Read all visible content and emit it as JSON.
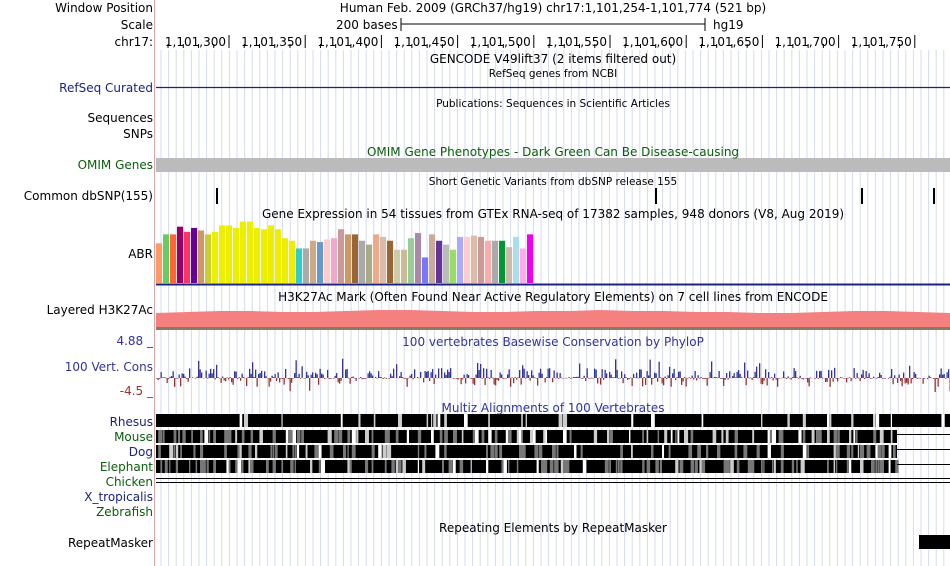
{
  "header": {
    "window_position_label": "Window Position",
    "scale_label": "Scale",
    "chrom_label": "chr17:",
    "assembly_title": "Human Feb. 2009 (GRCh37/hg19)   chr17:1,101,254-1,101,774 (521 bp)",
    "scale_text": "200 bases",
    "assembly_tag": "hg19",
    "ruler_ticks": [
      "1,101,300",
      "1,101,350",
      "1,101,400",
      "1,101,450",
      "1,101,500",
      "1,101,550",
      "1,101,600",
      "1,101,650",
      "1,101,700",
      "1,101,750"
    ]
  },
  "tracks": {
    "gencode_title": "GENCODE V49lift37 (2 items filtered out)",
    "refseq_subtitle": "RefSeq genes from NCBI",
    "refseq_label": "RefSeq Curated",
    "publications_title": "Publications: Sequences in Scientific Articles",
    "sequences_label": "Sequences",
    "snps_label": "SNPs",
    "omim_title": "OMIM Gene Phenotypes - Dark Green Can Be Disease-causing",
    "omim_label": "OMIM Genes",
    "dbsnp_title": "Short Genetic Variants from dbSNP release 155",
    "dbsnp_label": "Common dbSNP(155)",
    "gtex_title": "Gene Expression in 54 tissues from GTEx RNA-seq of 17382 samples, 948 donors (V8, Aug 2019)",
    "gtex_label": "ABR",
    "h3k27ac_title": "H3K27Ac Mark (Often Found Near Active Regulatory Elements) on 7 cell lines from ENCODE",
    "h3k27ac_label": "Layered H3K27Ac",
    "phylop_title": "100 vertebrates Basewise Conservation by PhyloP",
    "phylop_label": "100 Vert. Cons",
    "phylop_max": "4.88 _",
    "phylop_min": "-4.5 _",
    "multiz_title": "Multiz Alignments of 100 Vertebrates",
    "species": [
      "Rhesus",
      "Mouse",
      "Dog",
      "Elephant",
      "Chicken",
      "X_tropicalis",
      "Zebrafish"
    ],
    "repeat_title": "Repeating Elements by RepeatMasker",
    "repeat_label": "RepeatMasker"
  },
  "chart_data": {
    "type": "bar",
    "title": "Gene Expression in 54 tissues from GTEx RNA-seq",
    "gene": "ABR",
    "values": [
      0.62,
      0.76,
      0.76,
      0.88,
      0.8,
      0.86,
      0.82,
      0.76,
      0.8,
      0.9,
      0.9,
      0.86,
      0.96,
      0.96,
      0.86,
      0.84,
      0.9,
      0.84,
      0.7,
      0.66,
      0.54,
      0.54,
      0.66,
      0.64,
      0.68,
      0.7,
      0.84,
      0.76,
      0.76,
      0.66,
      0.6,
      0.76,
      0.72,
      0.66,
      0.52,
      0.52,
      0.7,
      0.78,
      0.4,
      0.76,
      0.66,
      0.6,
      0.52,
      0.72,
      0.72,
      0.74,
      0.72,
      0.66,
      0.66,
      0.66,
      0.56,
      0.72,
      0.54,
      0.76
    ],
    "colors": [
      "#ff9966",
      "#66cc66",
      "#ff6633",
      "#990066",
      "#ff3366",
      "#660099",
      "#cc9966",
      "#cccc33",
      "#eeee00",
      "#eeee00",
      "#eeee00",
      "#eeee00",
      "#eeee00",
      "#eeee00",
      "#eeee00",
      "#eeee00",
      "#eeee00",
      "#eeee00",
      "#eeee00",
      "#eeee00",
      "#33cccc",
      "#aaaaaa",
      "#ccaa88",
      "#6699cc",
      "#ffcccc",
      "#eeaacc",
      "#cc9999",
      "#cc9966",
      "#996633",
      "#aaaaaa",
      "#aaaa88",
      "#eeaa88",
      "#ddbbaa",
      "#996633",
      "#ccccaa",
      "#ccbb99",
      "#99cc99",
      "#aa88aa",
      "#7777ff",
      "#ccaa99",
      "#663399",
      "#bbbbbb",
      "#99dd66",
      "#aaaaff",
      "#ffcccc",
      "#ddbbaa",
      "#cc9999",
      "#ffaaaa",
      "#aaaaaa",
      "#009933",
      "#ccbbaa",
      "#aaddee",
      "#ffaaee",
      "#ee00ee"
    ]
  },
  "colors": {
    "label_blue": "#1a237e",
    "label_green": "#0b5d0b",
    "conservation_pos": "#333399",
    "conservation_neg": "#993333",
    "h3k27ac_fill": "#f58080",
    "grid_line": "#d6dbf0"
  }
}
